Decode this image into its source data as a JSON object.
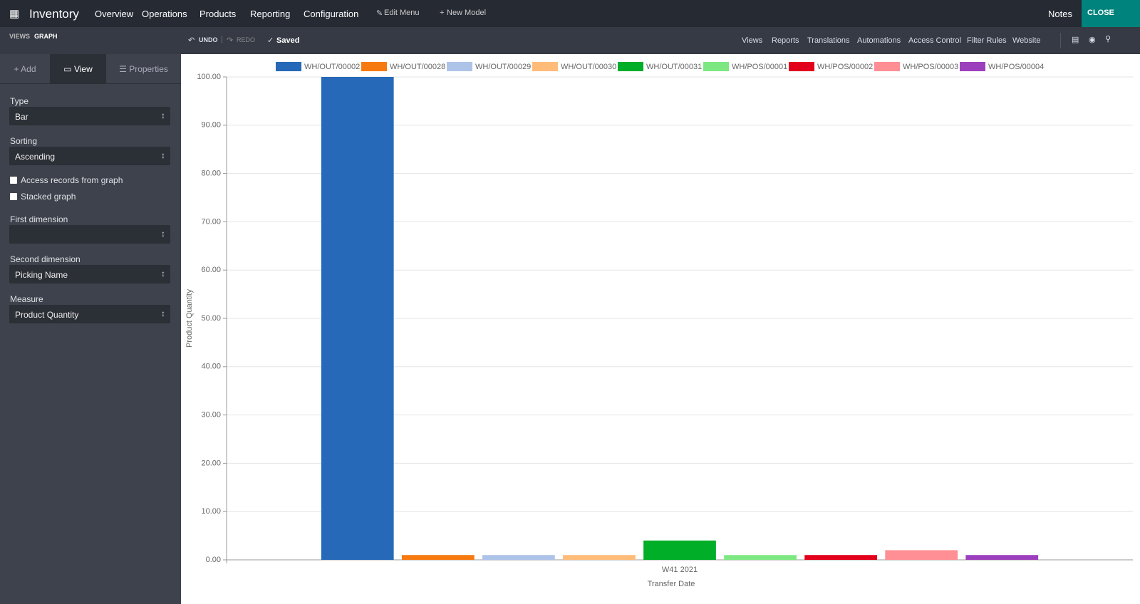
{
  "navbar": {
    "app": "Inventory",
    "menu": [
      "Overview",
      "Operations",
      "Products",
      "Reporting",
      "Configuration"
    ],
    "edit_menu": "Edit Menu",
    "new_model": "New Model",
    "notes": "Notes",
    "close": "CLOSE"
  },
  "toolbar": {
    "breadcrumb": [
      "VIEWS",
      "GRAPH"
    ],
    "undo": "UNDO",
    "redo": "REDO",
    "saved": "Saved",
    "links": [
      "Views",
      "Reports",
      "Translations",
      "Automations",
      "Access Control",
      "Filter Rules",
      "Website"
    ]
  },
  "sidebar": {
    "tabs": [
      "Add",
      "View",
      "Properties"
    ],
    "type": {
      "label": "Type",
      "value": "Bar"
    },
    "sorting": {
      "label": "Sorting",
      "value": "Ascending"
    },
    "checkboxes": [
      "Access records from graph",
      "Stacked graph"
    ],
    "first_dimension": {
      "label": "First dimension"
    },
    "second_dimension": {
      "label": "Second dimension",
      "value": "Picking Name"
    },
    "measure": {
      "label": "Measure",
      "value": "Product Quantity"
    }
  },
  "chart_data": {
    "type": "bar",
    "categories": [
      "W41 2021"
    ],
    "xlabel": "Transfer Date",
    "ylabel": "Product Quantity",
    "series": [
      {
        "name": "WH/OUT/00002",
        "color": "#2669b8",
        "values": [
          100
        ]
      },
      {
        "name": "WH/OUT/00028",
        "color": "#f77a10",
        "values": [
          1
        ]
      },
      {
        "name": "WH/OUT/00029",
        "color": "#aec3e8",
        "values": [
          1
        ]
      },
      {
        "name": "WH/OUT/00030",
        "color": "#ffbb78",
        "values": [
          1
        ]
      },
      {
        "name": "WH/OUT/00031",
        "color": "#00ae28",
        "values": [
          4
        ]
      },
      {
        "name": "WH/POS/00001",
        "color": "#7de882",
        "values": [
          1
        ]
      },
      {
        "name": "WH/POS/00002",
        "color": "#e3001b",
        "values": [
          1
        ]
      },
      {
        "name": "WH/POS/00003",
        "color": "#ff8f94",
        "values": [
          2
        ]
      },
      {
        "name": "WH/POS/00004",
        "color": "#9c3fbd",
        "values": [
          1
        ]
      }
    ],
    "ylim": [
      0,
      100
    ],
    "yticks": [
      {
        "value": 0,
        "label": "0.00"
      },
      {
        "value": 10,
        "label": "10.00"
      },
      {
        "value": 20,
        "label": "20.00"
      },
      {
        "value": 30,
        "label": "30.00"
      },
      {
        "value": 40,
        "label": "40.00"
      },
      {
        "value": 50,
        "label": "50.00"
      },
      {
        "value": 60,
        "label": "60.00"
      },
      {
        "value": 70,
        "label": "70.00"
      },
      {
        "value": 80,
        "label": "80.00"
      },
      {
        "value": 90,
        "label": "90.00"
      },
      {
        "value": 100,
        "label": "100.00"
      }
    ],
    "grid": true,
    "legend": "top"
  }
}
